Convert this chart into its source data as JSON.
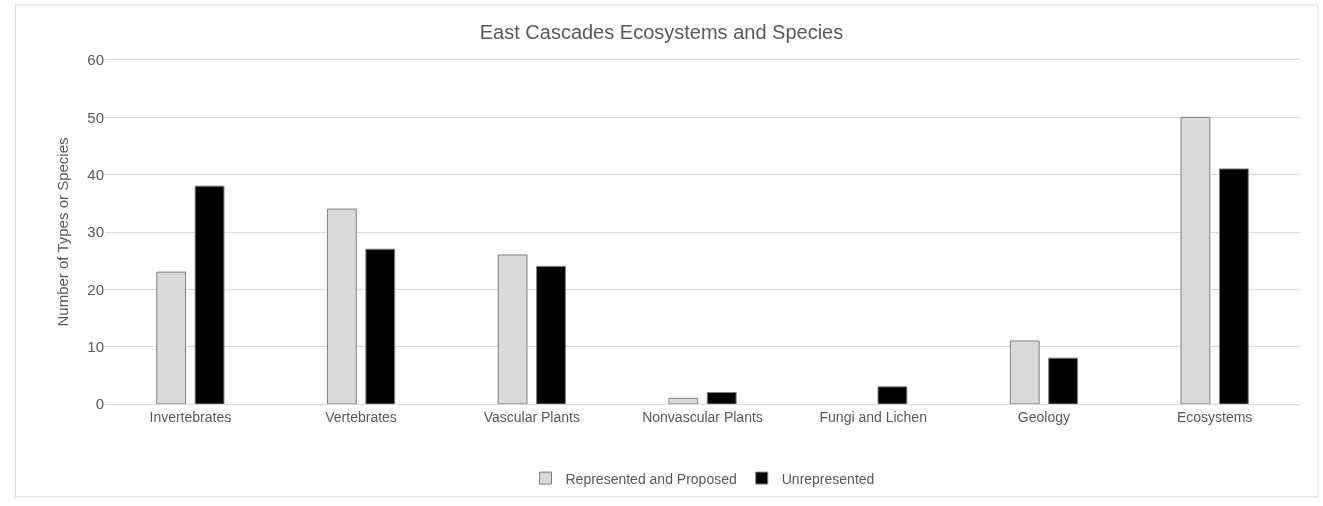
{
  "chart_data": {
    "type": "bar",
    "title": "East Cascades Ecosystems and Species",
    "ylabel": "Number of Types or Species",
    "categories": [
      "Invertebrates",
      "Vertebrates",
      "Vascular Plants",
      "Nonvascular Plants",
      "Fungi and Lichen",
      "Geology",
      "Ecosystems"
    ],
    "series": [
      {
        "name": "Represented and Proposed",
        "color": "#d9d9d9",
        "values": [
          23,
          34,
          26,
          1,
          null,
          11,
          50
        ]
      },
      {
        "name": "Unrepresented",
        "color": "#000000",
        "values": [
          38,
          27,
          24,
          2,
          3,
          8,
          41
        ]
      }
    ],
    "ylim": [
      0,
      60
    ],
    "yticks": [
      0,
      10,
      20,
      30,
      40,
      50,
      60
    ],
    "grid": "y",
    "legend": "bottom"
  }
}
